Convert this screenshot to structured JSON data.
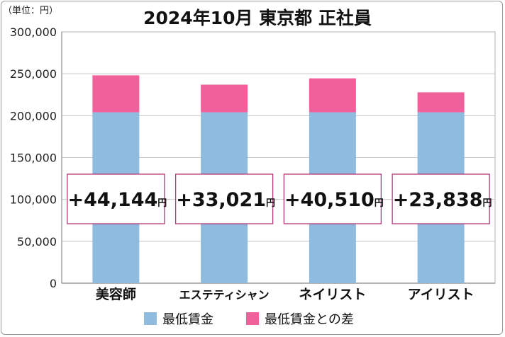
{
  "chart_data": {
    "type": "bar",
    "stacked": true,
    "title": "2024年10月 東京都 正社員",
    "unit_label": "（単位：円）",
    "categories": [
      "美容師",
      "エステティシャン",
      "ネイリスト",
      "アイリスト"
    ],
    "series": [
      {
        "name": "最低賃金",
        "values": [
          204000,
          204000,
          204000,
          204000
        ],
        "color": "#8fbbdf"
      },
      {
        "name": "最低賃金との差",
        "values": [
          44144,
          33021,
          40510,
          23838
        ],
        "color": "#f0609a"
      }
    ],
    "callouts": [
      {
        "value": "+44,144",
        "unit": "円"
      },
      {
        "value": "+33,021",
        "unit": "円"
      },
      {
        "value": "+40,510",
        "unit": "円"
      },
      {
        "value": "+23,838",
        "unit": "円"
      }
    ],
    "ylim": [
      0,
      300000
    ],
    "yticks": [
      0,
      50000,
      100000,
      150000,
      200000,
      250000,
      300000
    ],
    "ytick_labels": [
      "0",
      "50,000",
      "100,000",
      "150,000",
      "200,000",
      "250,000",
      "300,000"
    ],
    "grid": true,
    "legend_position": "bottom",
    "callout_border_color": "#b33a7a"
  }
}
